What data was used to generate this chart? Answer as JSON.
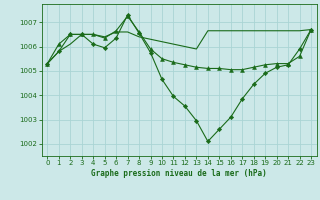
{
  "bg_color": "#cce8e8",
  "grid_color": "#aad4d4",
  "line_color": "#1a6b1a",
  "title": "Graphe pression niveau de la mer (hPa)",
  "ylim": [
    1001.5,
    1007.75
  ],
  "xlim": [
    -0.5,
    23.5
  ],
  "yticks": [
    1002,
    1003,
    1004,
    1005,
    1006,
    1007
  ],
  "xticks": [
    0,
    1,
    2,
    3,
    4,
    5,
    6,
    7,
    8,
    9,
    10,
    11,
    12,
    13,
    14,
    15,
    16,
    17,
    18,
    19,
    20,
    21,
    22,
    23
  ],
  "series1_x": [
    0,
    1,
    2,
    3,
    4,
    5,
    6,
    7,
    8,
    9,
    10,
    11,
    12,
    13,
    14,
    15,
    16,
    17,
    18,
    19,
    20,
    21,
    22,
    23
  ],
  "series1_y": [
    1005.3,
    1005.8,
    1006.1,
    1006.5,
    1006.5,
    1006.4,
    1006.6,
    1006.6,
    1006.4,
    1006.3,
    1006.2,
    1006.1,
    1006.0,
    1005.9,
    1006.65,
    1006.65,
    1006.65,
    1006.65,
    1006.65,
    1006.65,
    1006.65,
    1006.65,
    1006.65,
    1006.7
  ],
  "series2_x": [
    0,
    1,
    2,
    3,
    4,
    5,
    6,
    7,
    8,
    9,
    10,
    11,
    12,
    13,
    14,
    15,
    16,
    17,
    18,
    19,
    20,
    21,
    22,
    23
  ],
  "series2_y": [
    1005.3,
    1006.1,
    1006.5,
    1006.5,
    1006.5,
    1006.35,
    1006.65,
    1007.25,
    1006.6,
    1005.9,
    1005.5,
    1005.35,
    1005.25,
    1005.15,
    1005.1,
    1005.1,
    1005.05,
    1005.05,
    1005.15,
    1005.25,
    1005.3,
    1005.3,
    1005.6,
    1006.7
  ],
  "series3_x": [
    0,
    1,
    2,
    3,
    4,
    5,
    6,
    7,
    8,
    9,
    10,
    11,
    12,
    13,
    14,
    15,
    16,
    17,
    18,
    19,
    20,
    21,
    22,
    23
  ],
  "series3_y": [
    1005.3,
    1005.8,
    1006.5,
    1006.5,
    1006.1,
    1005.95,
    1006.35,
    1007.3,
    1006.55,
    1005.75,
    1004.65,
    1003.95,
    1003.55,
    1002.95,
    1002.1,
    1002.6,
    1003.1,
    1003.85,
    1004.45,
    1004.9,
    1005.15,
    1005.25,
    1005.9,
    1006.7
  ]
}
